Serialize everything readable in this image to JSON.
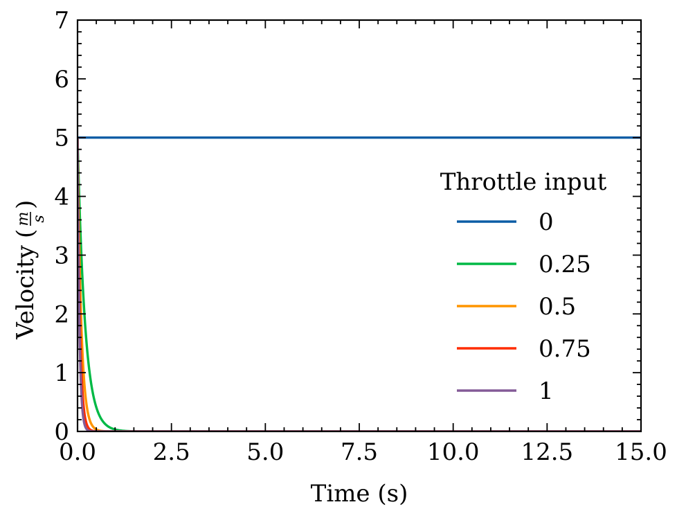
{
  "chart_data": {
    "type": "line",
    "title": "",
    "xlabel": "Time (s)",
    "ylabel_text": "Velocity",
    "ylabel_unit_num": "m",
    "ylabel_unit_den": "s",
    "xlim": [
      0,
      15
    ],
    "ylim": [
      0,
      7
    ],
    "x_ticks": [
      "0.0",
      "2.5",
      "5.0",
      "7.5",
      "10.0",
      "12.5",
      "15.0"
    ],
    "y_ticks": [
      "0",
      "1",
      "2",
      "3",
      "4",
      "5",
      "6",
      "7"
    ],
    "grid": false,
    "legend": {
      "title": "Throttle input",
      "placement": "right"
    },
    "series": [
      {
        "name": "0",
        "color": "#0C5DA5",
        "initial": 5,
        "decay_time_s": 0,
        "steady": 5
      },
      {
        "name": "0.25",
        "color": "#00B945",
        "initial": 5,
        "decay_time_s": 0.2,
        "steady": 0
      },
      {
        "name": "0.5",
        "color": "#FF9500",
        "initial": 5,
        "decay_time_s": 0.1,
        "steady": 0
      },
      {
        "name": "0.75",
        "color": "#FF2C00",
        "initial": 5,
        "decay_time_s": 0.066,
        "steady": 0
      },
      {
        "name": "1",
        "color": "#845B97",
        "initial": 5,
        "decay_time_s": 0.05,
        "steady": 0
      }
    ]
  }
}
